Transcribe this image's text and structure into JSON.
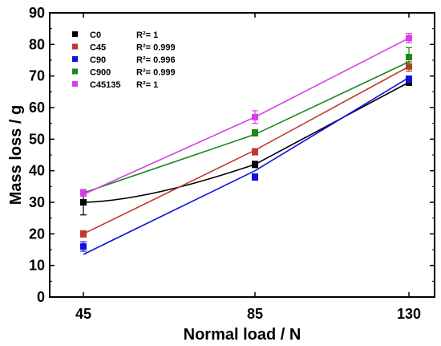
{
  "chart_data": {
    "type": "line",
    "xlabel": "Normal load / N",
    "ylabel": "Mass loss / g",
    "x": [
      45,
      85,
      130
    ],
    "x_ticks": [
      "45",
      "85",
      "130"
    ],
    "ylim": [
      0,
      90
    ],
    "y_ticks": [
      "0",
      "10",
      "20",
      "30",
      "40",
      "50",
      "60",
      "70",
      "80",
      "90"
    ],
    "grid": false,
    "legend_position": "top-left",
    "series": [
      {
        "name": "C0",
        "r2": "R²= 1",
        "color": "#000000",
        "values": [
          30,
          42,
          68
        ],
        "errors": [
          4,
          1,
          1
        ],
        "fit": "connect"
      },
      {
        "name": "C45",
        "r2": "R²= 0.999",
        "color": "#c0392b",
        "values": [
          20,
          46,
          73
        ],
        "errors": [
          1,
          1,
          1.5
        ],
        "fit": [
          20,
          46.5,
          73
        ]
      },
      {
        "name": "C90",
        "r2": "R²= 0.996",
        "color": "#1010e0",
        "values": [
          16,
          38,
          69
        ],
        "errors": [
          1.5,
          1,
          1
        ],
        "fit": [
          13.5,
          40,
          69.5
        ]
      },
      {
        "name": "C900",
        "r2": "R²= 0.999",
        "color": "#1a8a1a",
        "values": [
          33,
          52,
          76
        ],
        "errors": [
          1,
          1,
          3
        ],
        "fit": [
          33,
          51.5,
          74.5
        ]
      },
      {
        "name": "C45135",
        "r2": "R²= 1",
        "color": "#d63fe6",
        "values": [
          33,
          57,
          82
        ],
        "errors": [
          1,
          2,
          1.5
        ],
        "fit": [
          32.5,
          57,
          82
        ]
      }
    ]
  }
}
